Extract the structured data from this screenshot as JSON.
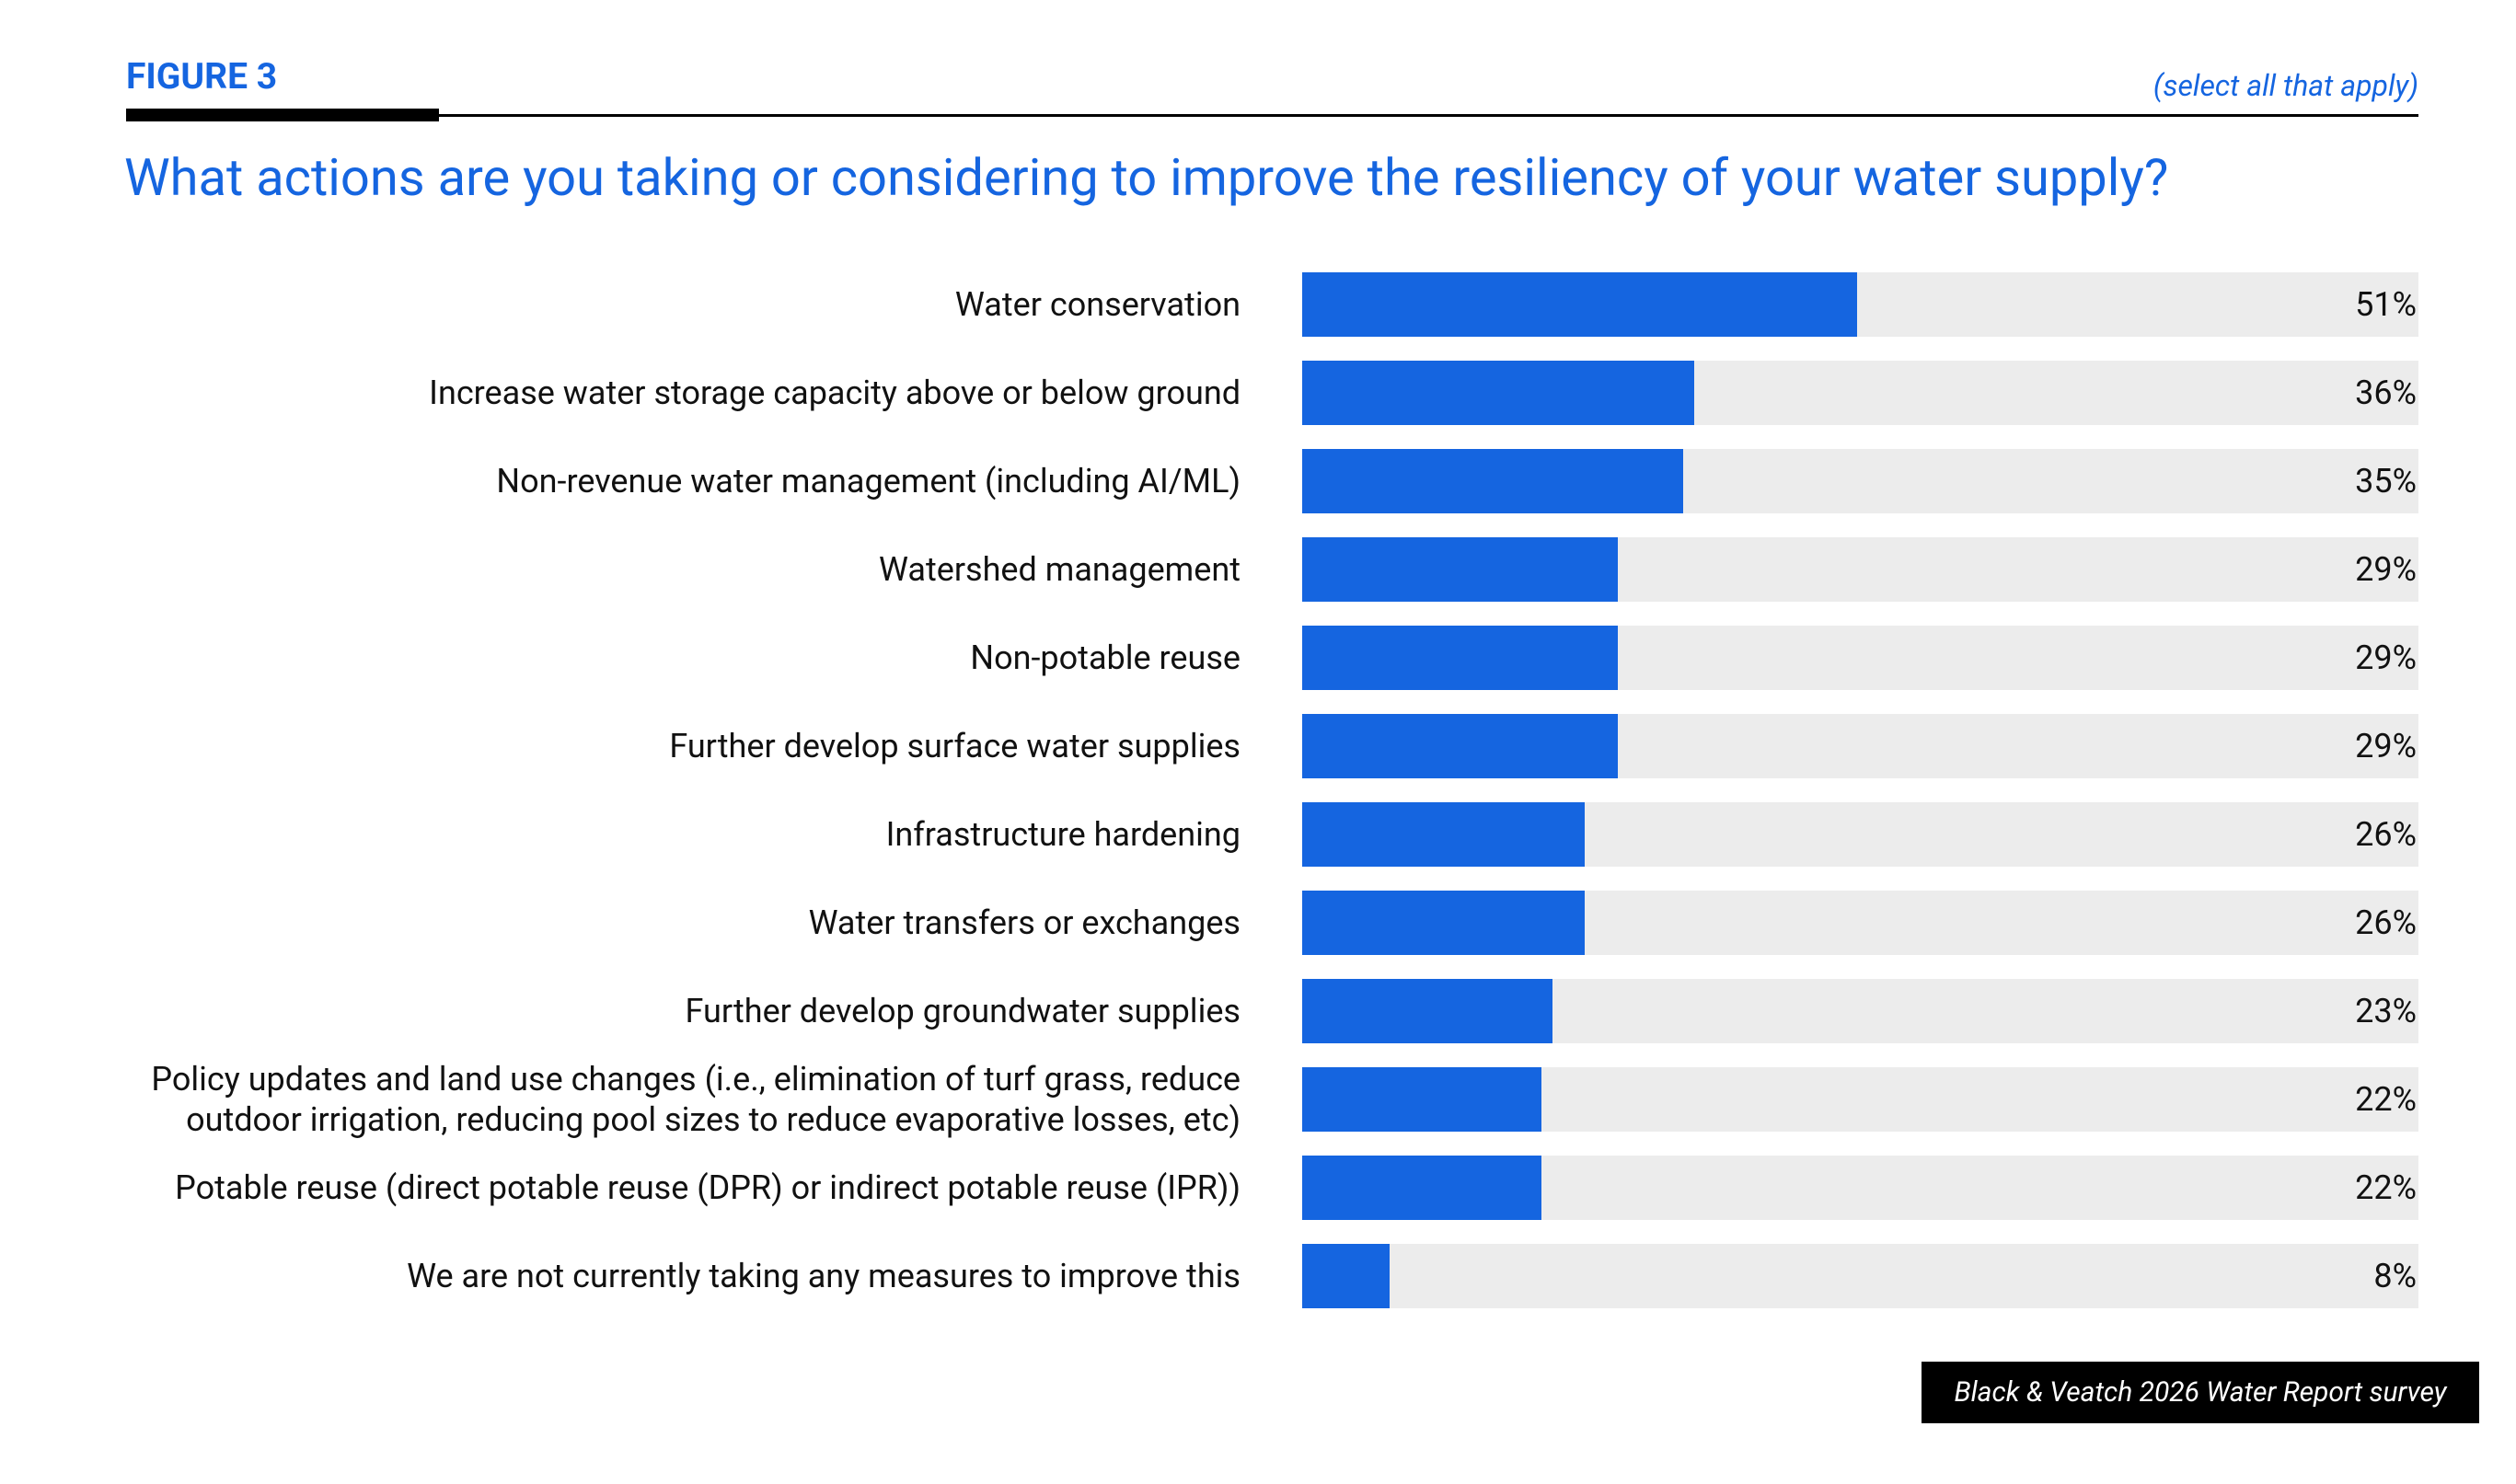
{
  "header": {
    "figure": "FIGURE 3",
    "note": "(select all that apply)"
  },
  "chart_data": {
    "type": "bar",
    "orientation": "horizontal",
    "title": "What actions are you taking or considering to improve the resiliency of your water supply?",
    "categories": [
      "Water conservation",
      "Increase water storage capacity above or below ground",
      "Non-revenue water management (including AI/ML)",
      "Watershed management",
      "Non-potable reuse",
      "Further develop surface water supplies",
      "Infrastructure hardening",
      "Water transfers or exchanges",
      "Further develop groundwater supplies",
      "Policy updates and land use changes (i.e., elimination of turf grass, reduce outdoor irrigation, reducing pool sizes to reduce evaporative losses, etc)",
      "Potable reuse (direct potable reuse (DPR) or indirect potable reuse (IPR))",
      "We are not currently taking any measures to improve this"
    ],
    "values": [
      51,
      36,
      35,
      29,
      29,
      29,
      26,
      26,
      23,
      22,
      22,
      8
    ],
    "value_labels": [
      "51%",
      "36%",
      "35%",
      "29%",
      "29%",
      "29%",
      "26%",
      "26%",
      "23%",
      "22%",
      "22%",
      "8%"
    ],
    "color": "#1565e0",
    "xlim": [
      0,
      100
    ]
  },
  "footer": {
    "source": "Black & Veatch 2026 Water Report survey"
  }
}
